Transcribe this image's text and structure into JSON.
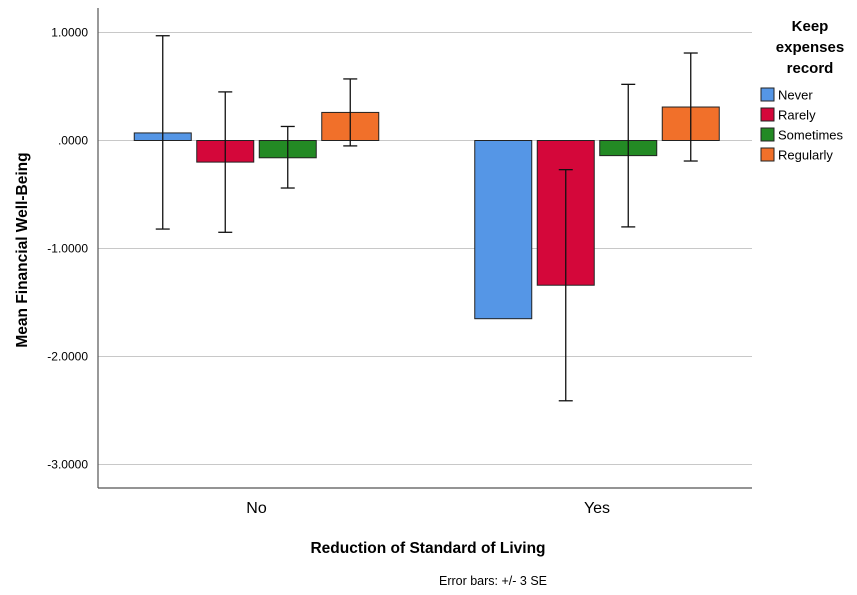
{
  "chart_data": {
    "type": "bar",
    "xlabel": "Reduction of Standard of Living",
    "ylabel": "Mean Financial Well-Being",
    "ylim": [
      -3.2,
      1.2
    ],
    "yticks": [
      1.0,
      0.0,
      -1.0,
      -2.0,
      -3.0
    ],
    "ytick_labels": [
      "1.0000",
      ".0000",
      "-1.0000",
      "-2.0000",
      "-3.0000"
    ],
    "grid": true,
    "categories": [
      "No",
      "Yes"
    ],
    "legend": {
      "title": [
        "Keep",
        "expenses",
        "record"
      ],
      "placement": "right"
    },
    "series": [
      {
        "name": "Never",
        "color": "#5596e6",
        "values": [
          0.07,
          -1.65
        ],
        "err_low": [
          -0.82,
          null
        ],
        "err_high": [
          0.97,
          null
        ]
      },
      {
        "name": "Rarely",
        "color": "#d4073a",
        "values": [
          -0.2,
          -1.34
        ],
        "err_low": [
          -0.85,
          -2.41
        ],
        "err_high": [
          0.45,
          -0.27
        ]
      },
      {
        "name": "Sometimes",
        "color": "#238a24",
        "values": [
          -0.16,
          -0.14
        ],
        "err_low": [
          -0.44,
          -0.8
        ],
        "err_high": [
          0.13,
          0.52
        ]
      },
      {
        "name": "Regularly",
        "color": "#f1702a",
        "values": [
          0.26,
          0.31
        ],
        "err_low": [
          -0.05,
          -0.19
        ],
        "err_high": [
          0.57,
          0.81
        ]
      }
    ],
    "note": "Error bars: +/- 3 SE"
  }
}
